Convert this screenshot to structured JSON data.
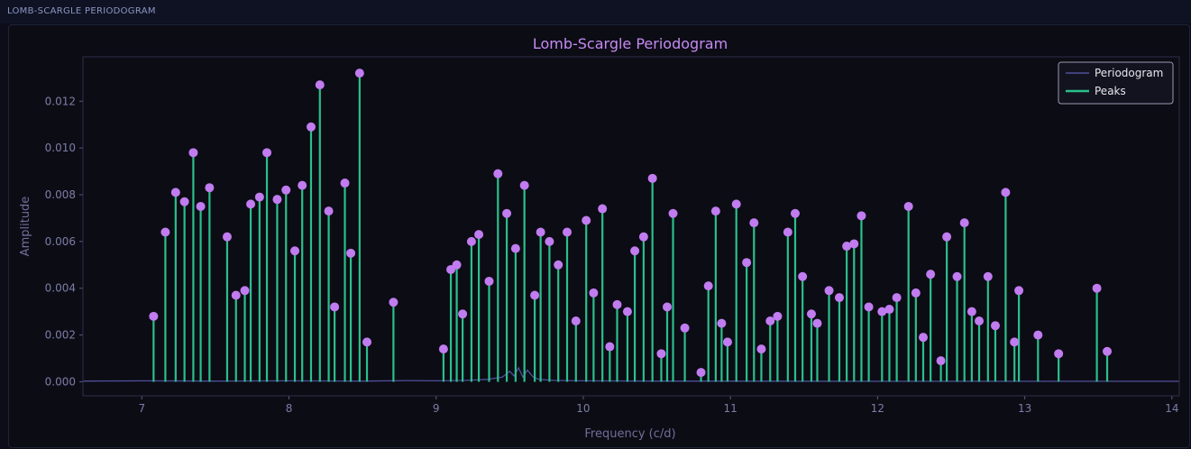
{
  "panel": {
    "label": "LOMB-SCARGLE PERIODOGRAM"
  },
  "colors": {
    "stem": "#2bbf8a",
    "marker": "#c17cf0",
    "line": "#4f4f9c",
    "title": "#c58bf2",
    "axis_text": "#7b7ea6"
  },
  "chart_data": {
    "type": "line",
    "title": "Lomb-Scargle Periodogram",
    "xlabel": "Frequency (c/d)",
    "ylabel": "Amplitude",
    "xlim": [
      6.6,
      14.05
    ],
    "ylim": [
      -0.0006,
      0.0139
    ],
    "xticks": [
      7,
      8,
      9,
      10,
      11,
      12,
      13,
      14
    ],
    "xtick_labels": [
      "7",
      "8",
      "9",
      "10",
      "11",
      "12",
      "13",
      "14"
    ],
    "yticks": [
      0,
      0.002,
      0.004,
      0.006,
      0.008,
      0.01,
      0.012
    ],
    "ytick_labels": [
      "0.000",
      "0.002",
      "0.004",
      "0.006",
      "0.008",
      "0.010",
      "0.012"
    ],
    "legend": {
      "position": "top-right",
      "entries": [
        "Periodogram",
        "Peaks"
      ]
    },
    "series": [
      {
        "name": "Periodogram",
        "type": "line",
        "x": [
          6.6,
          7.0,
          7.5,
          8.0,
          8.5,
          8.8,
          9.0,
          9.2,
          9.35,
          9.45,
          9.5,
          9.53,
          9.56,
          9.59,
          9.62,
          9.66,
          9.7,
          9.8,
          10.0,
          10.5,
          11.0,
          12.0,
          13.0,
          14.05
        ],
        "y": [
          3e-05,
          4e-05,
          3e-05,
          4e-05,
          3e-05,
          5e-05,
          4e-05,
          6e-05,
          0.0001,
          0.0002,
          0.00045,
          0.00025,
          0.0006,
          0.0002,
          0.0005,
          0.0002,
          0.0001,
          6e-05,
          4e-05,
          3e-05,
          3e-05,
          2e-05,
          2e-05,
          2e-05
        ]
      },
      {
        "name": "Peaks",
        "type": "stem",
        "x": [
          7.08,
          7.16,
          7.23,
          7.29,
          7.35,
          7.4,
          7.46,
          7.58,
          7.64,
          7.7,
          7.74,
          7.8,
          7.85,
          7.92,
          7.98,
          8.04,
          8.09,
          8.15,
          8.21,
          8.27,
          8.31,
          8.38,
          8.42,
          8.48,
          8.53,
          8.71,
          9.05,
          9.1,
          9.14,
          9.18,
          9.24,
          9.29,
          9.36,
          9.42,
          9.48,
          9.54,
          9.6,
          9.67,
          9.71,
          9.77,
          9.83,
          9.89,
          9.95,
          10.02,
          10.07,
          10.13,
          10.18,
          10.23,
          10.3,
          10.35,
          10.41,
          10.47,
          10.53,
          10.57,
          10.61,
          10.69,
          10.8,
          10.85,
          10.9,
          10.94,
          10.98,
          11.04,
          11.11,
          11.16,
          11.21,
          11.27,
          11.32,
          11.39,
          11.44,
          11.49,
          11.55,
          11.59,
          11.67,
          11.74,
          11.79,
          11.84,
          11.89,
          11.94,
          12.03,
          12.08,
          12.13,
          12.21,
          12.26,
          12.31,
          12.36,
          12.43,
          12.47,
          12.54,
          12.59,
          12.64,
          12.69,
          12.75,
          12.8,
          12.87,
          12.93,
          12.96,
          13.09,
          13.23,
          13.49,
          13.56
        ],
        "y": [
          0.0028,
          0.0064,
          0.0081,
          0.0077,
          0.0098,
          0.0075,
          0.0083,
          0.0062,
          0.0037,
          0.0039,
          0.0076,
          0.0079,
          0.0098,
          0.0078,
          0.0082,
          0.0056,
          0.0084,
          0.0109,
          0.0127,
          0.0073,
          0.0032,
          0.0085,
          0.0055,
          0.0132,
          0.0017,
          0.0034,
          0.0014,
          0.0048,
          0.005,
          0.0029,
          0.006,
          0.0063,
          0.0043,
          0.0089,
          0.0072,
          0.0057,
          0.0084,
          0.0037,
          0.0064,
          0.006,
          0.005,
          0.0064,
          0.0026,
          0.0069,
          0.0038,
          0.0074,
          0.0015,
          0.0033,
          0.003,
          0.0056,
          0.0062,
          0.0087,
          0.0012,
          0.0032,
          0.0072,
          0.0023,
          0.0004,
          0.0041,
          0.0073,
          0.0025,
          0.0017,
          0.0076,
          0.0051,
          0.0068,
          0.0014,
          0.0026,
          0.0028,
          0.0064,
          0.0072,
          0.0045,
          0.0029,
          0.0025,
          0.0039,
          0.0036,
          0.0058,
          0.0059,
          0.0071,
          0.0032,
          0.003,
          0.0031,
          0.0036,
          0.0075,
          0.0038,
          0.0019,
          0.0046,
          0.0009,
          0.0062,
          0.0045,
          0.0068,
          0.003,
          0.0026,
          0.0045,
          0.0024,
          0.0081,
          0.0017,
          0.0039,
          0.002,
          0.0012,
          0.004,
          0.0013
        ]
      }
    ]
  }
}
